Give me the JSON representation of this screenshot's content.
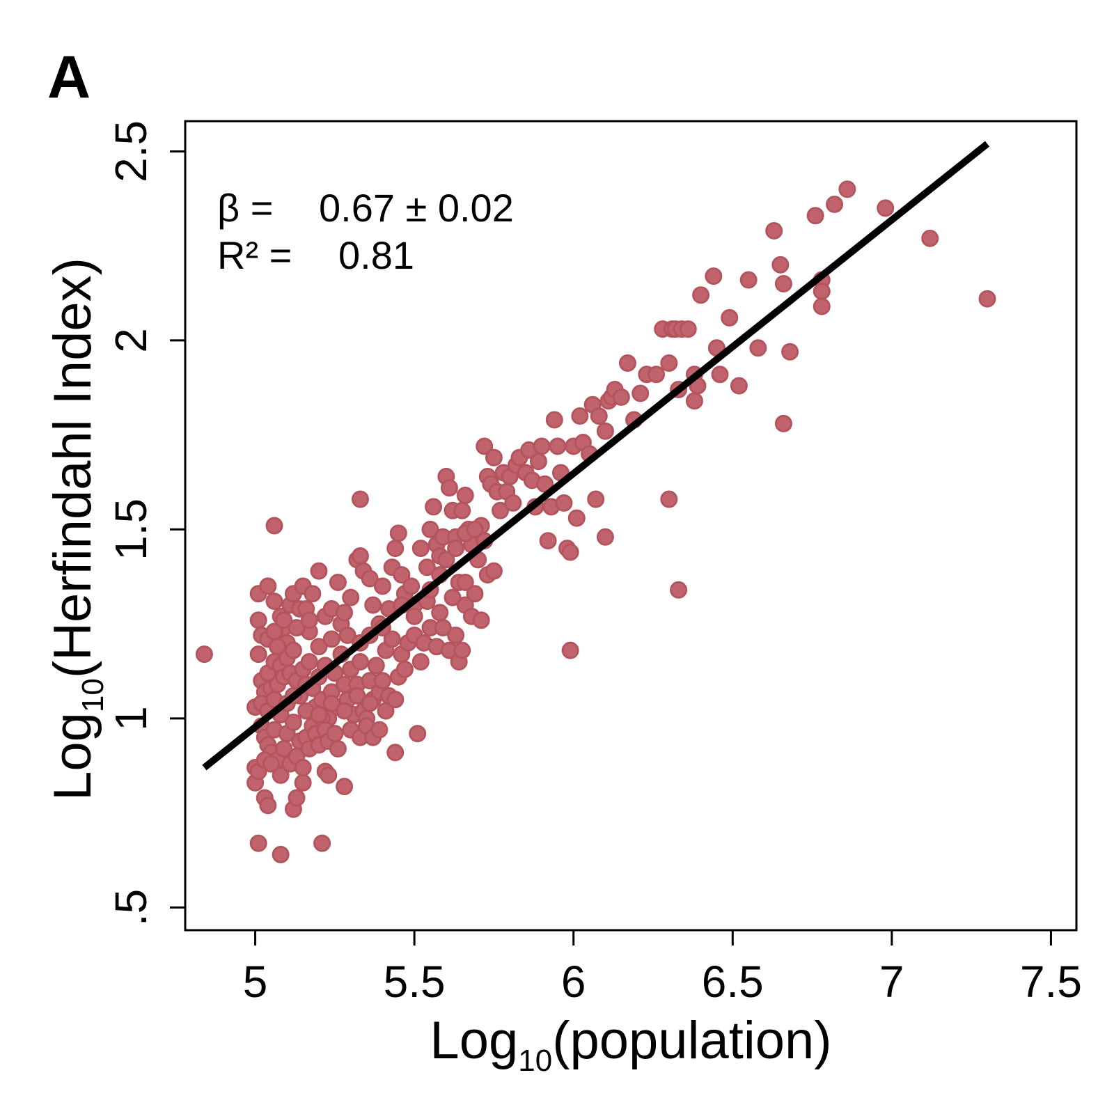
{
  "panel_label": "A",
  "colors": {
    "points": "#c0636c",
    "points_stroke": "#b4555e",
    "fit_line": "#000000",
    "axes": "#000000"
  },
  "annotation": {
    "beta_prefix": "β =",
    "beta_value": "0.67 ±  0.02",
    "r2_prefix": "R² =",
    "r2_value": "0.81"
  },
  "chart_data": {
    "type": "scatter",
    "title": "",
    "xlabel_main": "Log",
    "xlabel_sub": "10",
    "xlabel_rest": "(population)",
    "ylabel_main": "Log",
    "ylabel_sub": "10",
    "ylabel_rest": "(Herfindahl Index)",
    "xlim": [
      4.78,
      7.58
    ],
    "ylim": [
      0.44,
      2.58
    ],
    "xticks": [
      5,
      5.5,
      6,
      6.5,
      7,
      7.5
    ],
    "xtick_labels": [
      "5",
      "5.5",
      "6",
      "6.5",
      "7",
      "7.5"
    ],
    "yticks": [
      0.5,
      1,
      1.5,
      2,
      2.5
    ],
    "ytick_labels": [
      ".5",
      "1",
      "1.5",
      "2",
      "2.5"
    ],
    "grid": false,
    "fit": {
      "slope": 0.67,
      "slope_err": 0.02,
      "r2": 0.81,
      "x": [
        4.84,
        7.3
      ],
      "y": [
        0.87,
        2.52
      ]
    },
    "points": [
      [
        4.84,
        1.17
      ],
      [
        5.06,
        1.51
      ],
      [
        5.33,
        1.58
      ],
      [
        5.01,
        0.67
      ],
      [
        5.08,
        0.64
      ],
      [
        5.21,
        0.67
      ],
      [
        5.03,
        0.79
      ],
      [
        5.04,
        0.77
      ],
      [
        5.12,
        0.76
      ],
      [
        5.13,
        0.79
      ],
      [
        5.15,
        0.83
      ],
      [
        5.0,
        0.83
      ],
      [
        5.28,
        0.82
      ],
      [
        5.22,
        0.86
      ],
      [
        5.23,
        0.85
      ],
      [
        5.44,
        0.91
      ],
      [
        5.51,
        0.96
      ],
      [
        5.0,
        1.03
      ],
      [
        5.02,
        1.1
      ],
      [
        5.03,
        1.07
      ],
      [
        5.05,
        1.08
      ],
      [
        5.07,
        1.09
      ],
      [
        5.01,
        1.17
      ],
      [
        5.02,
        1.22
      ],
      [
        5.04,
        1.21
      ],
      [
        5.01,
        1.26
      ],
      [
        5.01,
        1.33
      ],
      [
        5.04,
        1.35
      ],
      [
        5.06,
        1.31
      ],
      [
        5.08,
        1.27
      ],
      [
        5.09,
        1.24
      ],
      [
        5.1,
        1.2
      ],
      [
        5.11,
        1.3
      ],
      [
        5.12,
        1.33
      ],
      [
        5.14,
        1.29
      ],
      [
        5.15,
        1.35
      ],
      [
        5.16,
        1.29
      ],
      [
        5.17,
        1.23
      ],
      [
        5.18,
        1.33
      ],
      [
        5.2,
        1.39
      ],
      [
        5.22,
        1.27
      ],
      [
        5.24,
        1.29
      ],
      [
        5.26,
        1.36
      ],
      [
        5.27,
        1.25
      ],
      [
        5.29,
        1.22
      ],
      [
        5.3,
        1.32
      ],
      [
        5.32,
        1.42
      ],
      [
        5.33,
        1.43
      ],
      [
        5.34,
        1.39
      ],
      [
        5.36,
        1.37
      ],
      [
        5.37,
        1.3
      ],
      [
        5.39,
        1.25
      ],
      [
        5.4,
        1.35
      ],
      [
        5.42,
        1.29
      ],
      [
        5.43,
        1.4
      ],
      [
        5.44,
        1.45
      ],
      [
        5.45,
        1.49
      ],
      [
        5.46,
        1.38
      ],
      [
        5.47,
        1.33
      ],
      [
        5.49,
        1.35
      ],
      [
        5.5,
        1.3
      ],
      [
        5.52,
        1.45
      ],
      [
        5.54,
        1.4
      ],
      [
        5.55,
        1.5
      ],
      [
        5.56,
        1.56
      ],
      [
        5.57,
        1.46
      ],
      [
        5.58,
        1.43
      ],
      [
        5.59,
        1.48
      ],
      [
        5.6,
        1.64
      ],
      [
        5.61,
        1.61
      ],
      [
        5.62,
        1.55
      ],
      [
        5.63,
        1.48
      ],
      [
        5.64,
        1.36
      ],
      [
        5.65,
        1.55
      ],
      [
        5.66,
        1.59
      ],
      [
        5.67,
        1.5
      ],
      [
        5.68,
        1.46
      ],
      [
        5.7,
        1.42
      ],
      [
        5.71,
        1.51
      ],
      [
        5.72,
        1.72
      ],
      [
        5.73,
        1.64
      ],
      [
        5.74,
        1.62
      ],
      [
        5.75,
        1.69
      ],
      [
        5.76,
        1.6
      ],
      [
        5.77,
        1.55
      ],
      [
        5.78,
        1.65
      ],
      [
        5.79,
        1.6
      ],
      [
        5.8,
        1.64
      ],
      [
        5.81,
        1.57
      ],
      [
        5.82,
        1.67
      ],
      [
        5.83,
        1.69
      ],
      [
        5.85,
        1.65
      ],
      [
        5.86,
        1.71
      ],
      [
        5.87,
        1.63
      ],
      [
        5.88,
        1.56
      ],
      [
        5.89,
        1.68
      ],
      [
        5.9,
        1.72
      ],
      [
        5.91,
        1.62
      ],
      [
        5.92,
        1.47
      ],
      [
        5.93,
        1.56
      ],
      [
        5.94,
        1.79
      ],
      [
        5.95,
        1.72
      ],
      [
        5.96,
        1.65
      ],
      [
        5.97,
        1.57
      ],
      [
        5.98,
        1.45
      ],
      [
        5.99,
        1.44
      ],
      [
        6.0,
        1.72
      ],
      [
        6.01,
        1.53
      ],
      [
        6.02,
        1.8
      ],
      [
        6.03,
        1.73
      ],
      [
        6.05,
        1.7
      ],
      [
        6.06,
        1.83
      ],
      [
        6.08,
        1.8
      ],
      [
        6.1,
        1.76
      ],
      [
        6.11,
        1.84
      ],
      [
        6.12,
        1.85
      ],
      [
        6.13,
        1.87
      ],
      [
        6.15,
        1.85
      ],
      [
        6.17,
        1.94
      ],
      [
        6.19,
        1.79
      ],
      [
        6.21,
        1.86
      ],
      [
        6.23,
        1.91
      ],
      [
        6.26,
        1.91
      ],
      [
        6.28,
        2.03
      ],
      [
        6.3,
        1.94
      ],
      [
        6.31,
        2.03
      ],
      [
        6.32,
        2.03
      ],
      [
        6.34,
        2.03
      ],
      [
        6.36,
        2.03
      ],
      [
        6.38,
        1.91
      ],
      [
        6.39,
        1.88
      ],
      [
        6.4,
        2.12
      ],
      [
        6.44,
        2.17
      ],
      [
        6.45,
        1.98
      ],
      [
        6.46,
        1.91
      ],
      [
        6.49,
        2.06
      ],
      [
        6.52,
        1.88
      ],
      [
        6.55,
        2.16
      ],
      [
        6.58,
        1.98
      ],
      [
        6.63,
        2.29
      ],
      [
        6.65,
        2.2
      ],
      [
        6.66,
        2.15
      ],
      [
        6.68,
        1.97
      ],
      [
        6.76,
        2.33
      ],
      [
        6.78,
        2.16
      ],
      [
        6.78,
        2.13
      ],
      [
        6.78,
        2.09
      ],
      [
        6.82,
        2.36
      ],
      [
        6.86,
        2.4
      ],
      [
        6.98,
        2.35
      ],
      [
        7.12,
        2.27
      ],
      [
        7.3,
        2.11
      ],
      [
        6.66,
        1.78
      ],
      [
        6.3,
        1.58
      ],
      [
        6.33,
        1.34
      ],
      [
        5.99,
        1.18
      ],
      [
        6.07,
        1.58
      ],
      [
        6.1,
        1.48
      ],
      [
        6.38,
        1.84
      ],
      [
        6.33,
        1.87
      ],
      [
        5.04,
        1.12
      ],
      [
        5.06,
        1.15
      ],
      [
        5.07,
        1.19
      ],
      [
        5.08,
        1.14
      ],
      [
        5.09,
        1.11
      ],
      [
        5.1,
        1.16
      ],
      [
        5.11,
        1.12
      ],
      [
        5.12,
        1.18
      ],
      [
        5.13,
        1.1
      ],
      [
        5.14,
        1.06
      ],
      [
        5.15,
        1.13
      ],
      [
        5.16,
        1.09
      ],
      [
        5.17,
        1.15
      ],
      [
        5.18,
        1.08
      ],
      [
        5.19,
        1.03
      ],
      [
        5.2,
        1.11
      ],
      [
        5.21,
        1.05
      ],
      [
        5.22,
        1.14
      ],
      [
        5.23,
        1.0
      ],
      [
        5.24,
        1.07
      ],
      [
        5.25,
        1.12
      ],
      [
        5.26,
        1.03
      ],
      [
        5.27,
        1.17
      ],
      [
        5.28,
        1.09
      ],
      [
        5.29,
        1.05
      ],
      [
        5.3,
        1.13
      ],
      [
        5.31,
        1.01
      ],
      [
        5.32,
        1.09
      ],
      [
        5.33,
        1.15
      ],
      [
        5.34,
        1.02
      ],
      [
        5.35,
        1.0
      ],
      [
        5.36,
        1.1
      ],
      [
        5.37,
        1.05
      ],
      [
        5.38,
        1.14
      ],
      [
        5.39,
        1.07
      ],
      [
        5.4,
        1.1
      ],
      [
        5.41,
        1.18
      ],
      [
        5.42,
        1.06
      ],
      [
        5.43,
        1.21
      ],
      [
        5.44,
        1.05
      ],
      [
        5.45,
        1.11
      ],
      [
        5.46,
        1.17
      ],
      [
        5.47,
        1.13
      ],
      [
        5.48,
        1.2
      ],
      [
        5.5,
        1.22
      ],
      [
        5.52,
        1.15
      ],
      [
        5.53,
        1.2
      ],
      [
        5.55,
        1.24
      ],
      [
        5.57,
        1.19
      ],
      [
        5.59,
        1.24
      ],
      [
        5.61,
        1.18
      ],
      [
        5.63,
        1.22
      ],
      [
        5.64,
        1.15
      ],
      [
        5.65,
        1.18
      ],
      [
        5.66,
        1.3
      ],
      [
        5.68,
        1.27
      ],
      [
        5.69,
        1.33
      ],
      [
        5.71,
        1.26
      ],
      [
        5.73,
        1.38
      ],
      [
        5.75,
        1.39
      ],
      [
        5.02,
        0.98
      ],
      [
        5.03,
        0.95
      ],
      [
        5.04,
        0.93
      ],
      [
        5.05,
        0.91
      ],
      [
        5.06,
        0.97
      ],
      [
        5.07,
        0.89
      ],
      [
        5.08,
        0.85
      ],
      [
        5.09,
        0.92
      ],
      [
        5.1,
        0.96
      ],
      [
        5.11,
        0.88
      ],
      [
        5.12,
        0.99
      ],
      [
        5.13,
        0.9
      ],
      [
        5.14,
        0.94
      ],
      [
        5.15,
        0.87
      ],
      [
        5.16,
        0.95
      ],
      [
        5.17,
        0.92
      ],
      [
        5.18,
        0.98
      ],
      [
        5.19,
        0.96
      ],
      [
        5.2,
        0.93
      ],
      [
        5.21,
        1.0
      ],
      [
        5.22,
        0.97
      ],
      [
        5.23,
        0.94
      ],
      [
        5.25,
        0.96
      ],
      [
        5.26,
        0.92
      ],
      [
        5.3,
        0.97
      ],
      [
        5.33,
        0.95
      ],
      [
        5.35,
        0.98
      ],
      [
        5.37,
        0.95
      ],
      [
        5.39,
        0.97
      ],
      [
        5.0,
        0.87
      ],
      [
        5.01,
        0.86
      ],
      [
        5.03,
        0.89
      ],
      [
        5.05,
        0.88
      ],
      [
        5.02,
        1.04
      ],
      [
        5.04,
        1.02
      ],
      [
        5.06,
        1.05
      ],
      [
        5.08,
        1.01
      ],
      [
        5.1,
        1.04
      ],
      [
        5.12,
        1.06
      ],
      [
        5.16,
        1.02
      ],
      [
        5.2,
        1.01
      ],
      [
        5.24,
        1.04
      ],
      [
        5.28,
        1.02
      ],
      [
        5.32,
        1.06
      ],
      [
        5.36,
        1.04
      ],
      [
        5.41,
        1.02
      ],
      [
        5.44,
        1.05
      ],
      [
        5.06,
        1.23
      ],
      [
        5.09,
        1.26
      ],
      [
        5.13,
        1.24
      ],
      [
        5.17,
        1.26
      ],
      [
        5.2,
        1.19
      ],
      [
        5.24,
        1.21
      ],
      [
        5.28,
        1.28
      ],
      [
        5.33,
        1.2
      ],
      [
        5.36,
        1.22
      ],
      [
        5.4,
        1.24
      ],
      [
        5.46,
        1.3
      ],
      [
        5.5,
        1.27
      ],
      [
        5.54,
        1.31
      ],
      [
        5.58,
        1.28
      ],
      [
        5.62,
        1.32
      ],
      [
        5.66,
        1.36
      ],
      [
        5.6,
        1.42
      ],
      [
        5.63,
        1.45
      ],
      [
        5.66,
        1.49
      ],
      [
        5.69,
        1.5
      ],
      [
        5.72,
        1.47
      ],
      [
        5.58,
        1.38
      ],
      [
        5.55,
        1.34
      ]
    ]
  }
}
